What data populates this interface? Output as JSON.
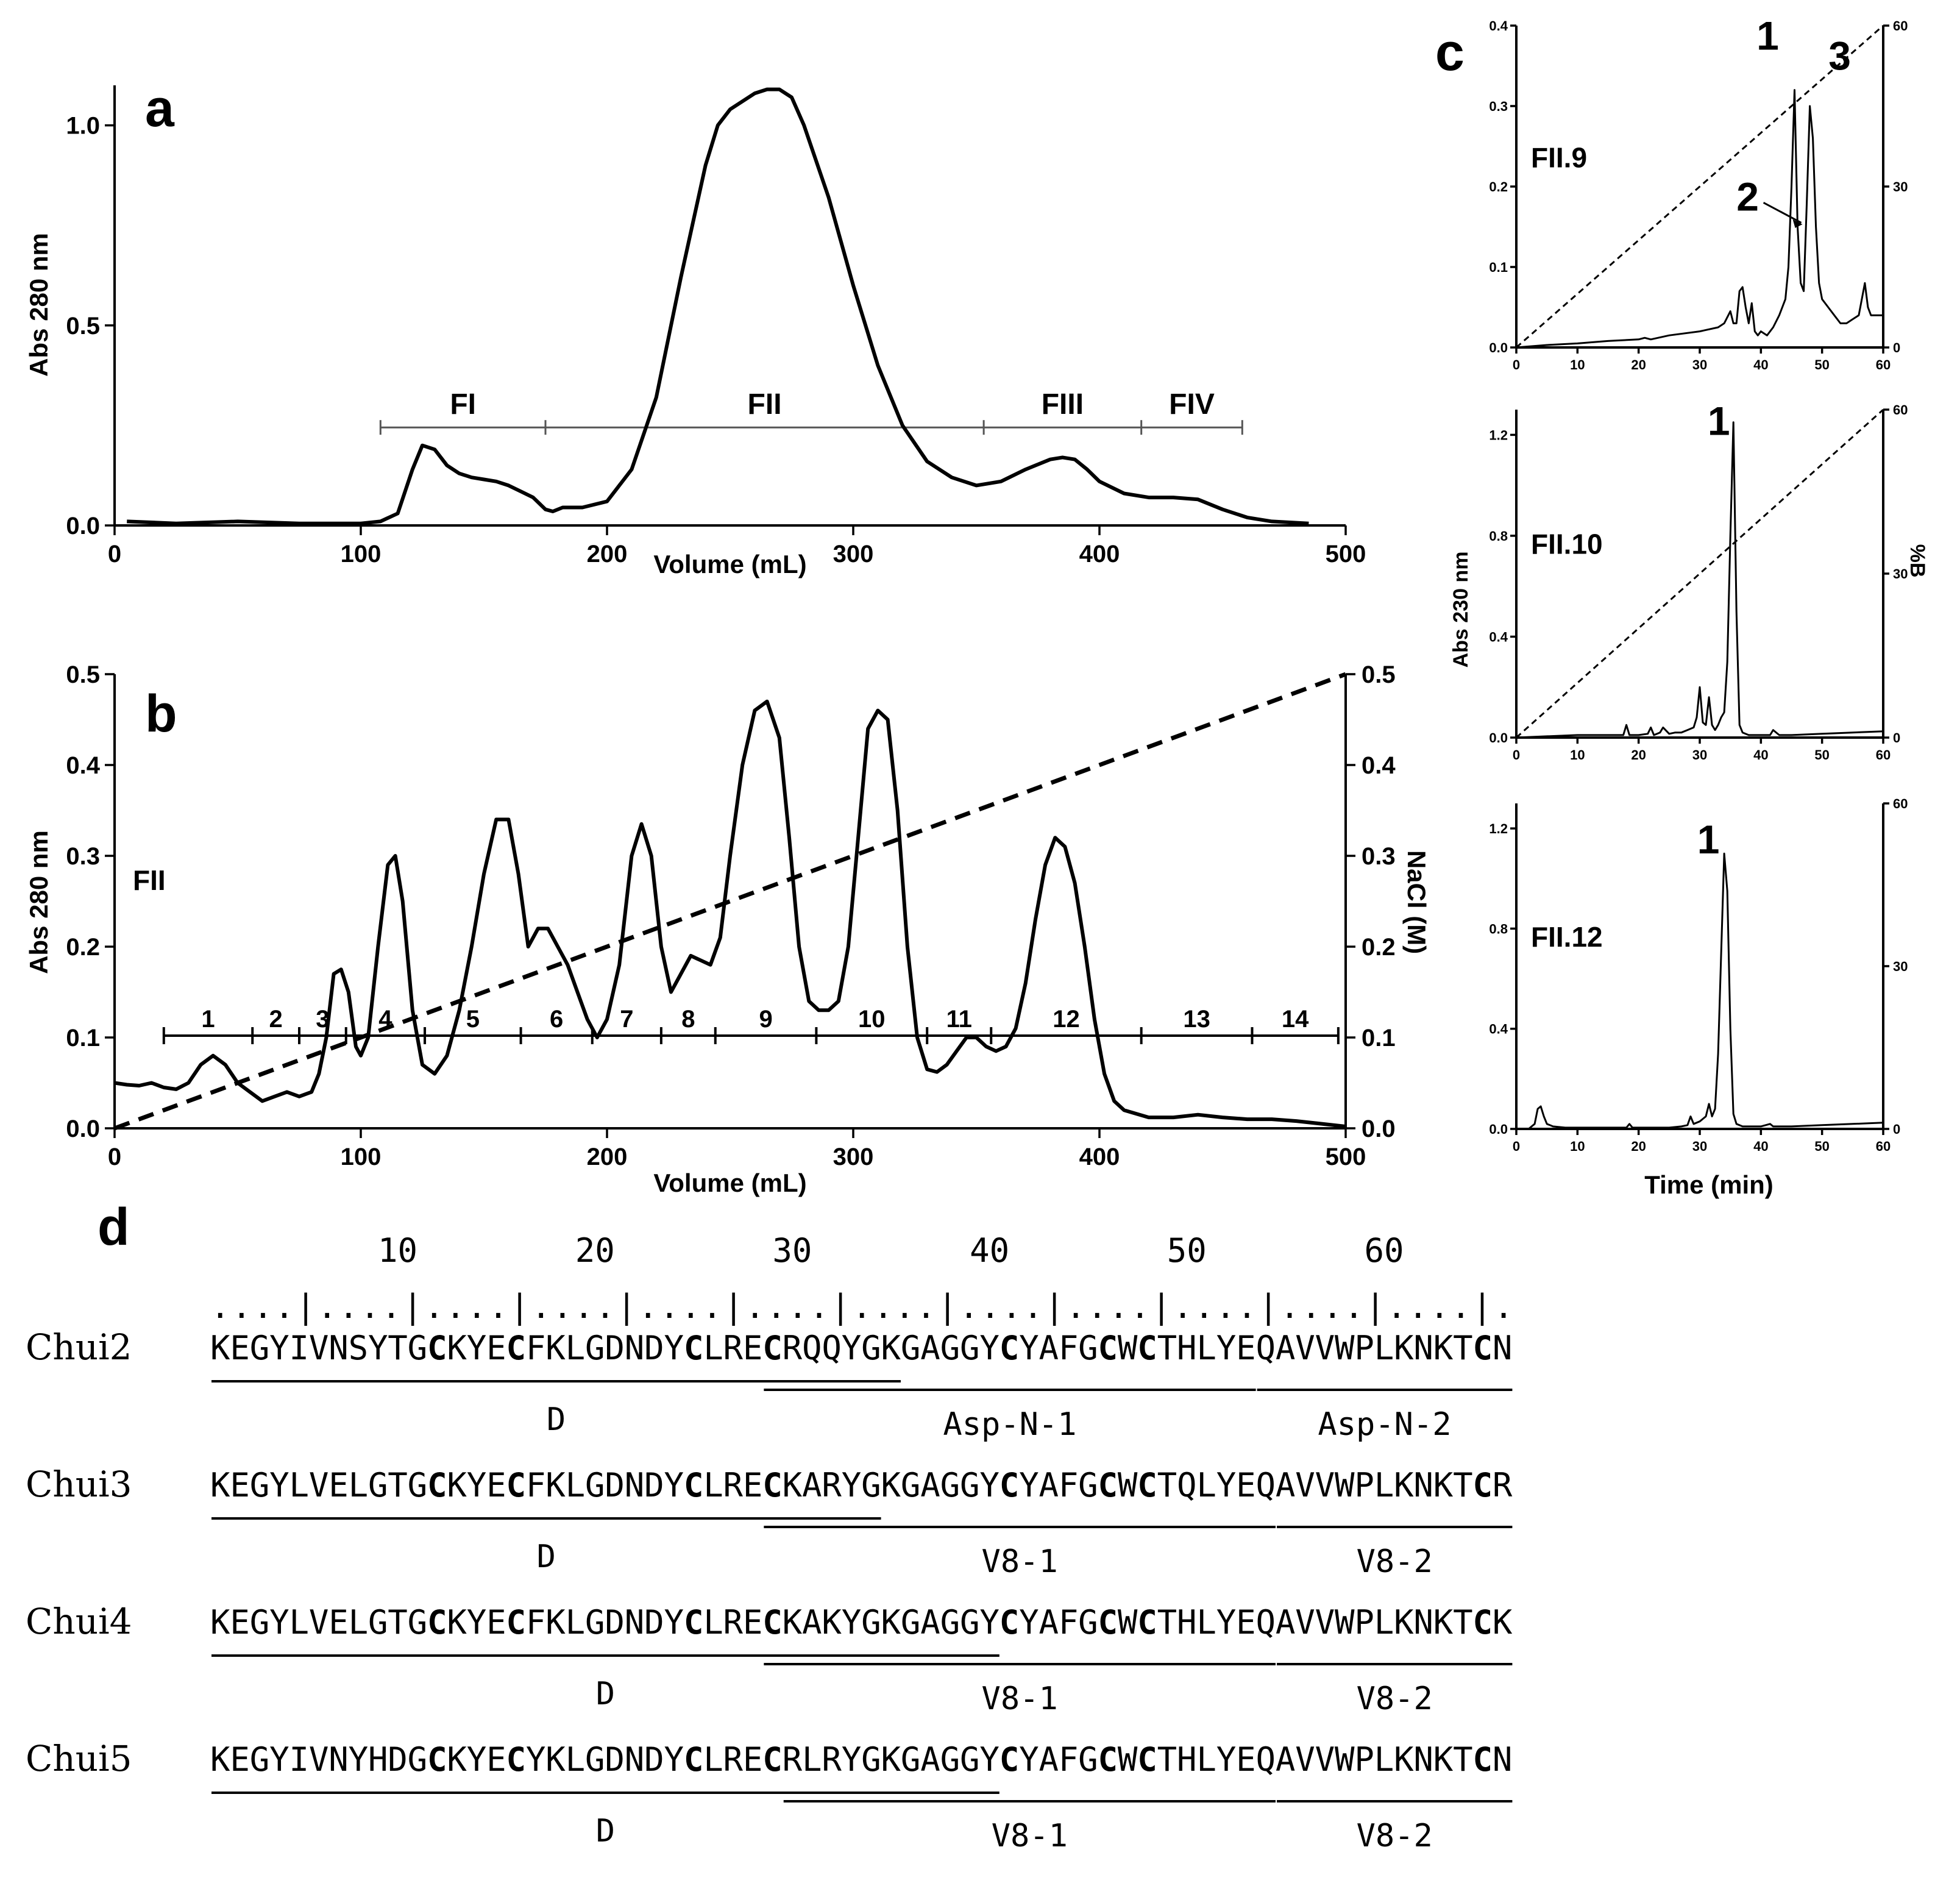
{
  "panels": {
    "a": "a",
    "b": "b",
    "c": "c",
    "d": "d"
  },
  "colors": {
    "line": "#000000",
    "background": "#ffffff"
  },
  "chart_data": [
    {
      "id": "a",
      "type": "line",
      "xlabel": "Volume (mL)",
      "ylabel": "Abs 280 nm",
      "xlim": [
        0,
        500
      ],
      "ylim": [
        0,
        1.1
      ],
      "xticks": [
        0,
        100,
        200,
        300,
        400,
        500
      ],
      "yticks": [
        0.0,
        0.5,
        1.0
      ],
      "xtick_labels": [
        "0",
        "100",
        "200",
        "300",
        "400",
        "500"
      ],
      "ytick_labels": [
        "0.0",
        "0.5",
        "1.0"
      ],
      "x": [
        5,
        25,
        50,
        75,
        100,
        108,
        115,
        121,
        125,
        130,
        135,
        140,
        145,
        150,
        155,
        160,
        165,
        170,
        175,
        178,
        182,
        190,
        200,
        210,
        220,
        230,
        240,
        245,
        250,
        260,
        265,
        270,
        275,
        280,
        290,
        300,
        310,
        320,
        330,
        340,
        350,
        360,
        370,
        380,
        385,
        390,
        395,
        400,
        410,
        420,
        430,
        440,
        450,
        460,
        470,
        485
      ],
      "y": [
        0.01,
        0.005,
        0.01,
        0.005,
        0.005,
        0.01,
        0.03,
        0.14,
        0.2,
        0.19,
        0.15,
        0.13,
        0.12,
        0.115,
        0.11,
        0.1,
        0.085,
        0.07,
        0.04,
        0.035,
        0.045,
        0.045,
        0.06,
        0.14,
        0.32,
        0.62,
        0.9,
        1.0,
        1.04,
        1.08,
        1.09,
        1.09,
        1.07,
        1.0,
        0.82,
        0.6,
        0.4,
        0.25,
        0.16,
        0.12,
        0.1,
        0.11,
        0.14,
        0.165,
        0.17,
        0.165,
        0.14,
        0.11,
        0.08,
        0.07,
        0.07,
        0.065,
        0.04,
        0.02,
        0.01,
        0.005
      ],
      "fractions": [
        {
          "label": "FI",
          "start": 108,
          "end": 175
        },
        {
          "label": "FII",
          "start": 175,
          "end": 353
        },
        {
          "label": "FIII",
          "start": 353,
          "end": 417
        },
        {
          "label": "FIV",
          "start": 417,
          "end": 458
        }
      ],
      "fraction_bar_y": 0.245
    },
    {
      "id": "b",
      "type": "line",
      "sample_label": "FII",
      "xlabel": "Volume (mL)",
      "ylabel": "Abs 280 nm",
      "y2label": "NaCl (M)",
      "xlim": [
        0,
        500
      ],
      "ylim": [
        0,
        0.5
      ],
      "y2lim": [
        0,
        0.5
      ],
      "xticks": [
        0,
        100,
        200,
        300,
        400,
        500
      ],
      "yticks": [
        0.0,
        0.1,
        0.2,
        0.3,
        0.4,
        0.5
      ],
      "xtick_labels": [
        "0",
        "100",
        "200",
        "300",
        "400",
        "500"
      ],
      "ytick_labels": [
        "0.0",
        "0.1",
        "0.2",
        "0.3",
        "0.4",
        "0.5"
      ],
      "y2tick_labels": [
        "0.0",
        "0.1",
        "0.2",
        "0.3",
        "0.4",
        "0.5"
      ],
      "x": [
        0,
        5,
        10,
        15,
        20,
        25,
        30,
        35,
        40,
        45,
        50,
        55,
        60,
        65,
        70,
        75,
        80,
        83,
        86,
        89,
        92,
        95,
        98,
        100,
        103,
        107,
        111,
        114,
        117,
        121,
        125,
        130,
        135,
        140,
        145,
        150,
        155,
        160,
        164,
        168,
        172,
        176,
        180,
        184,
        188,
        192,
        196,
        200,
        205,
        210,
        214,
        218,
        222,
        226,
        230,
        234,
        238,
        242,
        246,
        250,
        255,
        260,
        265,
        270,
        274,
        278,
        282,
        286,
        290,
        294,
        298,
        302,
        306,
        310,
        314,
        318,
        322,
        326,
        330,
        334,
        338,
        342,
        346,
        350,
        354,
        358,
        362,
        366,
        370,
        374,
        378,
        382,
        386,
        390,
        394,
        398,
        402,
        406,
        410,
        420,
        430,
        440,
        450,
        460,
        470,
        480,
        490,
        500
      ],
      "y": [
        0.05,
        0.048,
        0.047,
        0.05,
        0.045,
        0.043,
        0.05,
        0.07,
        0.08,
        0.07,
        0.05,
        0.04,
        0.03,
        0.035,
        0.04,
        0.035,
        0.04,
        0.06,
        0.1,
        0.17,
        0.175,
        0.15,
        0.09,
        0.08,
        0.1,
        0.2,
        0.29,
        0.3,
        0.25,
        0.13,
        0.07,
        0.06,
        0.08,
        0.13,
        0.2,
        0.28,
        0.34,
        0.34,
        0.28,
        0.2,
        0.22,
        0.22,
        0.2,
        0.18,
        0.15,
        0.12,
        0.1,
        0.12,
        0.18,
        0.3,
        0.335,
        0.3,
        0.2,
        0.15,
        0.17,
        0.19,
        0.185,
        0.18,
        0.21,
        0.3,
        0.4,
        0.46,
        0.47,
        0.43,
        0.32,
        0.2,
        0.14,
        0.13,
        0.13,
        0.14,
        0.2,
        0.32,
        0.44,
        0.46,
        0.45,
        0.35,
        0.2,
        0.1,
        0.065,
        0.062,
        0.07,
        0.085,
        0.1,
        0.1,
        0.09,
        0.085,
        0.09,
        0.11,
        0.16,
        0.23,
        0.29,
        0.32,
        0.31,
        0.27,
        0.2,
        0.12,
        0.06,
        0.03,
        0.02,
        0.012,
        0.012,
        0.015,
        0.012,
        0.01,
        0.01,
        0.008,
        0.005,
        0.002
      ],
      "gradient": {
        "x": [
          0,
          500
        ],
        "y": [
          0,
          0.5
        ]
      },
      "fractions": [
        {
          "label": "1",
          "start": 20,
          "end": 56
        },
        {
          "label": "2",
          "start": 56,
          "end": 75
        },
        {
          "label": "3",
          "start": 75,
          "end": 94
        },
        {
          "label": "4",
          "start": 94,
          "end": 126
        },
        {
          "label": "5",
          "start": 126,
          "end": 165
        },
        {
          "label": "6",
          "start": 165,
          "end": 194
        },
        {
          "label": "7",
          "start": 194,
          "end": 222
        },
        {
          "label": "8",
          "start": 222,
          "end": 244
        },
        {
          "label": "9",
          "start": 244,
          "end": 285
        },
        {
          "label": "10",
          "start": 285,
          "end": 330
        },
        {
          "label": "11",
          "start": 330,
          "end": 356
        },
        {
          "label": "12",
          "start": 356,
          "end": 417
        },
        {
          "label": "13",
          "start": 417,
          "end": 462
        },
        {
          "label": "14",
          "start": 462,
          "end": 497
        }
      ],
      "fraction_bar_y": 0.102
    },
    {
      "id": "c1",
      "type": "line",
      "sample_label": "FII.9",
      "xlim": [
        0,
        60
      ],
      "ylim": [
        0,
        0.4
      ],
      "y2lim": [
        0,
        60
      ],
      "xticks": [
        0,
        10,
        20,
        30,
        40,
        50,
        60
      ],
      "yticks": [
        0.0,
        0.1,
        0.2,
        0.3,
        0.4
      ],
      "y2ticks": [
        0,
        30,
        60
      ],
      "xtick_labels": [
        "0",
        "10",
        "20",
        "30",
        "40",
        "50",
        "60"
      ],
      "ytick_labels": [
        "0.0",
        "0.1",
        "0.2",
        "0.3",
        "0.4"
      ],
      "y2tick_labels": [
        "0",
        "30",
        "60"
      ],
      "x": [
        0,
        5,
        10,
        15,
        20,
        21,
        22,
        25,
        30,
        33,
        34,
        35,
        35.5,
        36,
        36.5,
        37,
        37.5,
        38,
        38.5,
        39,
        39.5,
        40,
        41,
        42,
        43,
        44,
        44.5,
        45,
        45.5,
        46,
        46.5,
        47,
        47.5,
        48,
        48.5,
        49,
        49.5,
        50,
        51,
        52,
        53,
        54,
        55,
        56,
        56.5,
        57,
        57.5,
        58,
        59,
        60
      ],
      "y": [
        0.0,
        0.003,
        0.005,
        0.008,
        0.01,
        0.012,
        0.01,
        0.015,
        0.02,
        0.025,
        0.03,
        0.045,
        0.03,
        0.03,
        0.07,
        0.075,
        0.05,
        0.03,
        0.055,
        0.02,
        0.015,
        0.02,
        0.015,
        0.025,
        0.04,
        0.06,
        0.1,
        0.2,
        0.32,
        0.15,
        0.08,
        0.07,
        0.18,
        0.3,
        0.26,
        0.15,
        0.08,
        0.06,
        0.05,
        0.04,
        0.03,
        0.03,
        0.035,
        0.04,
        0.06,
        0.08,
        0.05,
        0.04,
        0.04,
        0.04
      ],
      "gradient": {
        "x": [
          0,
          60
        ],
        "y": [
          0,
          60
        ]
      },
      "peaks": [
        {
          "label": "1",
          "x": 45.5
        },
        {
          "label": "2",
          "x": 47
        },
        {
          "label": "3",
          "x": 48.3
        }
      ]
    },
    {
      "id": "c2",
      "type": "line",
      "sample_label": "FII.10",
      "ylabel": "Abs 230 nm",
      "y2label": "%B",
      "xlim": [
        0,
        60
      ],
      "ylim": [
        0,
        1.3
      ],
      "y2lim": [
        0,
        60
      ],
      "xticks": [
        0,
        10,
        20,
        30,
        40,
        50,
        60
      ],
      "yticks": [
        0.0,
        0.4,
        0.8,
        1.2
      ],
      "y2ticks": [
        0,
        30,
        60
      ],
      "xtick_labels": [
        "0",
        "10",
        "20",
        "30",
        "40",
        "50",
        "60"
      ],
      "ytick_labels": [
        "0.0",
        "0.4",
        "0.8",
        "1.2"
      ],
      "y2tick_labels": [
        "0",
        "30",
        "60"
      ],
      "x": [
        0,
        5,
        10,
        15,
        17.5,
        18,
        18.5,
        20,
        21.5,
        22,
        22.5,
        23.5,
        24,
        25,
        26,
        27,
        28,
        29,
        29.5,
        30,
        30.5,
        31,
        31.5,
        32,
        32.5,
        33,
        33.5,
        34,
        34.5,
        35,
        35.5,
        36,
        36.5,
        37,
        38,
        40,
        41.5,
        42,
        43,
        45,
        50,
        55,
        60
      ],
      "y": [
        0.0,
        0.005,
        0.01,
        0.01,
        0.01,
        0.05,
        0.01,
        0.01,
        0.015,
        0.04,
        0.01,
        0.02,
        0.04,
        0.015,
        0.02,
        0.02,
        0.03,
        0.04,
        0.08,
        0.2,
        0.06,
        0.05,
        0.16,
        0.05,
        0.03,
        0.05,
        0.08,
        0.1,
        0.3,
        0.8,
        1.25,
        0.5,
        0.05,
        0.02,
        0.01,
        0.01,
        0.01,
        0.03,
        0.01,
        0.01,
        0.015,
        0.02,
        0.025
      ],
      "gradient": {
        "x": [
          0,
          60
        ],
        "y": [
          0,
          60
        ]
      },
      "peaks": [
        {
          "label": "1",
          "x": 35.5
        }
      ]
    },
    {
      "id": "c3",
      "type": "line",
      "sample_label": "FII.12",
      "xlabel": "Time (min)",
      "xlim": [
        0,
        60
      ],
      "ylim": [
        0,
        1.3
      ],
      "y2lim": [
        0,
        60
      ],
      "xticks": [
        0,
        10,
        20,
        30,
        40,
        50,
        60
      ],
      "yticks": [
        0.0,
        0.4,
        0.8,
        1.2
      ],
      "y2ticks": [
        0,
        30,
        60
      ],
      "xtick_labels": [
        "0",
        "10",
        "20",
        "30",
        "40",
        "50",
        "60"
      ],
      "ytick_labels": [
        "0.0",
        "0.4",
        "0.8",
        "1.2"
      ],
      "y2tick_labels": [
        "0",
        "30",
        "60"
      ],
      "x": [
        0,
        2,
        3,
        3.5,
        4,
        4.5,
        5,
        6,
        8,
        10,
        15,
        18,
        18.5,
        19,
        20,
        25,
        27,
        28,
        28.5,
        29,
        30,
        31,
        31.5,
        32,
        32.5,
        33,
        33.5,
        34,
        34.5,
        35,
        35.5,
        36,
        37,
        40,
        41.5,
        42,
        45,
        50,
        55,
        60
      ],
      "y": [
        0.0,
        0.0,
        0.02,
        0.08,
        0.09,
        0.05,
        0.02,
        0.01,
        0.005,
        0.005,
        0.005,
        0.005,
        0.02,
        0.005,
        0.005,
        0.005,
        0.01,
        0.015,
        0.05,
        0.02,
        0.03,
        0.05,
        0.1,
        0.05,
        0.08,
        0.3,
        0.7,
        1.1,
        0.95,
        0.4,
        0.06,
        0.02,
        0.01,
        0.01,
        0.02,
        0.01,
        0.01,
        0.015,
        0.02,
        0.025
      ],
      "peaks": [
        {
          "label": "1",
          "x": 33.8
        }
      ]
    }
  ],
  "sequence_panel": {
    "ruler_numbers": [
      "10",
      "20",
      "30",
      "40",
      "50",
      "60"
    ],
    "ruler": ". . . . | . . . . | . . . . | . . . . | . . . . | . . . . | . . . . | . . . . | . . . . | . . . . | . . . . | . . . . | .",
    "rows": [
      {
        "name": "Chui2",
        "sequence": "KEGYIVNSYTGCKYECFKLGDNDYCLRECRQQYGKGAGGYCYAFGCWCTHLYEQAVVWPLKNKTCN",
        "fragments": [
          {
            "label": "D",
            "start": 1,
            "end": 35
          },
          {
            "label": "Asp-N-1",
            "start": 29,
            "end": 53
          },
          {
            "label": "Asp-N-2",
            "start": 54,
            "end": 66
          }
        ]
      },
      {
        "name": "Chui3",
        "sequence": "KEGYLVELGTGCKYECFKLGDNDYCLRECKARYGKGAGGYCYAFGCWCTQLYEQAVVWPLKNKTCR",
        "fragments": [
          {
            "label": "D",
            "start": 1,
            "end": 34
          },
          {
            "label": "V8-1",
            "start": 29,
            "end": 54
          },
          {
            "label": "V8-2",
            "start": 55,
            "end": 66
          }
        ]
      },
      {
        "name": "Chui4",
        "sequence": "KEGYLVELGTGCKYECFKLGDNDYCLRECKAKYGKGAGGYCYAFGCWCTHLYEQAVVWPLKNKTCK",
        "fragments": [
          {
            "label": "D",
            "start": 1,
            "end": 40
          },
          {
            "label": "V8-1",
            "start": 29,
            "end": 54
          },
          {
            "label": "V8-2",
            "start": 55,
            "end": 66
          }
        ]
      },
      {
        "name": "Chui5",
        "sequence": "KEGYIVNYHDGCKYECYKLGDNDYCLRECRLRYGKGAGGYCYAFGCWCTHLYEQAVVWPLKNKTCN",
        "fragments": [
          {
            "label": "D",
            "start": 1,
            "end": 40
          },
          {
            "label": "V8-1",
            "start": 30,
            "end": 54
          },
          {
            "label": "V8-2",
            "start": 55,
            "end": 66
          }
        ]
      }
    ]
  }
}
